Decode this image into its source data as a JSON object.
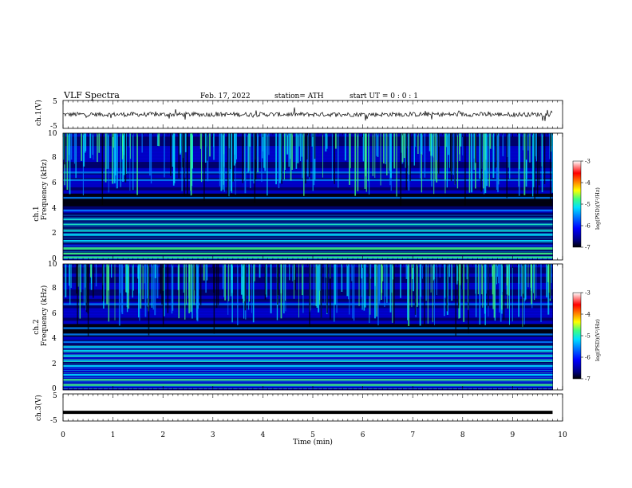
{
  "header": {
    "title": "VLF  Spectra",
    "date": "Feb. 17, 2022",
    "station": "station= ATH",
    "start": "start  UT  =    0  : 0   : 1"
  },
  "colors": {
    "palette": [
      "#000000",
      "#00007f",
      "#0000ff",
      "#0080ff",
      "#00e0ff",
      "#40ff80",
      "#ffff00",
      "#ff8000",
      "#ff0000",
      "#ffffff"
    ]
  },
  "chart_data": [
    {
      "type": "line",
      "name": "ch1-waveform",
      "ylabel": "ch.1(V)",
      "ylim": [
        -5,
        5
      ],
      "yticks": [
        "5",
        "-5"
      ],
      "x_range_min": [
        0,
        9.8
      ],
      "baseline_v": 0,
      "trace": "noise, amplitude about ±1 V with spikes"
    },
    {
      "type": "heatmap",
      "name": "ch1-spectrogram",
      "ylabel": "ch.1\nFrequency  (kHz)",
      "ylim": [
        0,
        10
      ],
      "yticks": [
        "0",
        "2",
        "4",
        "6",
        "8",
        "10"
      ],
      "x_range_min": [
        0,
        9.8
      ],
      "colorbar": {
        "label": "log(PSD)(V²/Hz)",
        "range": [
          -7,
          -3
        ],
        "ticks": [
          "-3",
          "-4",
          "-5",
          "-6",
          "-7"
        ]
      },
      "bands_khz": [
        0.2,
        0.5,
        0.9,
        1.5,
        2.0,
        2.3,
        2.8,
        3.2,
        3.9,
        4.9,
        6.3,
        6.9
      ]
    },
    {
      "type": "heatmap",
      "name": "ch2-spectrogram",
      "ylabel": "ch.2\nFrequency  (kHz)",
      "ylim": [
        0,
        10
      ],
      "yticks": [
        "0",
        "2",
        "4",
        "6",
        "8",
        "10"
      ],
      "x_range_min": [
        0,
        9.8
      ],
      "colorbar": {
        "label": "log(PSD)(V²/Hz)",
        "range": [
          -7,
          -3
        ],
        "ticks": [
          "-3",
          "-4",
          "-5",
          "-6",
          "-7"
        ]
      },
      "bands_khz": [
        0.4,
        0.8,
        1.2,
        1.9,
        2.3,
        2.7,
        3.1,
        3.4,
        3.8,
        4.4,
        4.9,
        6.8
      ]
    },
    {
      "type": "line",
      "name": "ch3-waveform",
      "ylabel": "ch.3(V)",
      "ylim": [
        -5,
        5
      ],
      "yticks": [
        "5",
        "-5"
      ],
      "x_range_min": [
        0,
        9.8
      ],
      "baseline_v": -1.8
    }
  ],
  "xaxis": {
    "label": "Time  (min)",
    "xlim": [
      0,
      10
    ],
    "ticks": [
      "0",
      "1",
      "2",
      "3",
      "4",
      "5",
      "6",
      "7",
      "8",
      "9",
      "10"
    ]
  }
}
